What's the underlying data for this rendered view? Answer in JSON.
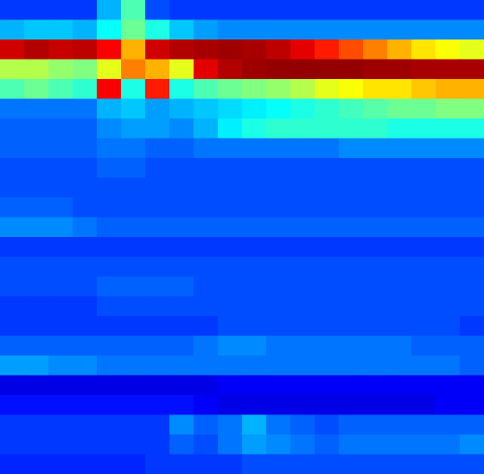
{
  "chart_data": {
    "type": "heatmap",
    "tick_labels": false,
    "grid": false,
    "color_range": [
      0,
      100
    ],
    "cells": [
      [
        18,
        18,
        18,
        18,
        30,
        45,
        20,
        18,
        18,
        18,
        18,
        18,
        18,
        18,
        18,
        18,
        18,
        18,
        18,
        18
      ],
      [
        30,
        32,
        32,
        30,
        38,
        48,
        40,
        32,
        28,
        26,
        26,
        26,
        26,
        26,
        26,
        26,
        26,
        26,
        26,
        26
      ],
      [
        92,
        95,
        93,
        94,
        88,
        70,
        92,
        95,
        96,
        97,
        96,
        94,
        90,
        85,
        80,
        75,
        70,
        65,
        62,
        60
      ],
      [
        55,
        55,
        52,
        50,
        60,
        75,
        70,
        60,
        90,
        95,
        97,
        98,
        98,
        98,
        98,
        97,
        97,
        96,
        96,
        96
      ],
      [
        45,
        48,
        45,
        42,
        88,
        40,
        85,
        40,
        45,
        48,
        50,
        52,
        55,
        60,
        62,
        65,
        65,
        68,
        70,
        70
      ],
      [
        24,
        24,
        24,
        24,
        30,
        32,
        28,
        30,
        32,
        34,
        36,
        38,
        40,
        42,
        44,
        46,
        48,
        48,
        50,
        50
      ],
      [
        22,
        22,
        22,
        22,
        26,
        28,
        28,
        26,
        30,
        36,
        40,
        42,
        42,
        42,
        42,
        42,
        40,
        40,
        40,
        40
      ],
      [
        22,
        22,
        22,
        22,
        24,
        24,
        22,
        22,
        24,
        24,
        24,
        24,
        24,
        24,
        26,
        26,
        26,
        26,
        26,
        26
      ],
      [
        20,
        20,
        20,
        20,
        22,
        22,
        20,
        20,
        20,
        20,
        20,
        20,
        20,
        20,
        20,
        20,
        20,
        20,
        20,
        20
      ],
      [
        20,
        20,
        20,
        20,
        20,
        20,
        20,
        20,
        20,
        20,
        20,
        20,
        20,
        20,
        20,
        20,
        20,
        20,
        20,
        20
      ],
      [
        22,
        22,
        22,
        20,
        20,
        20,
        20,
        20,
        20,
        20,
        20,
        20,
        20,
        20,
        20,
        20,
        20,
        20,
        20,
        20
      ],
      [
        26,
        26,
        26,
        24,
        22,
        22,
        22,
        22,
        22,
        22,
        22,
        22,
        22,
        22,
        22,
        22,
        22,
        22,
        22,
        22
      ],
      [
        18,
        18,
        18,
        18,
        18,
        18,
        18,
        18,
        18,
        18,
        18,
        18,
        18,
        18,
        18,
        18,
        18,
        18,
        18,
        18
      ],
      [
        20,
        20,
        20,
        20,
        20,
        20,
        20,
        20,
        20,
        20,
        20,
        20,
        20,
        20,
        20,
        20,
        20,
        20,
        20,
        20
      ],
      [
        20,
        20,
        20,
        20,
        22,
        22,
        22,
        22,
        20,
        20,
        20,
        20,
        20,
        20,
        20,
        20,
        20,
        20,
        20,
        20
      ],
      [
        18,
        18,
        18,
        18,
        20,
        20,
        20,
        20,
        20,
        20,
        20,
        20,
        20,
        20,
        20,
        20,
        20,
        20,
        20,
        20
      ],
      [
        18,
        18,
        18,
        18,
        18,
        18,
        18,
        18,
        18,
        20,
        20,
        20,
        20,
        20,
        20,
        20,
        20,
        20,
        20,
        18
      ],
      [
        22,
        22,
        22,
        22,
        22,
        22,
        22,
        22,
        24,
        26,
        26,
        24,
        24,
        24,
        24,
        24,
        24,
        22,
        22,
        22
      ],
      [
        28,
        28,
        26,
        26,
        24,
        24,
        24,
        24,
        24,
        24,
        24,
        24,
        24,
        24,
        24,
        24,
        24,
        24,
        24,
        22
      ],
      [
        10,
        10,
        10,
        10,
        10,
        10,
        10,
        10,
        10,
        12,
        12,
        12,
        12,
        12,
        12,
        12,
        12,
        12,
        12,
        12
      ],
      [
        14,
        14,
        14,
        14,
        14,
        14,
        14,
        14,
        12,
        10,
        10,
        10,
        10,
        10,
        10,
        10,
        10,
        10,
        12,
        12
      ],
      [
        18,
        18,
        18,
        18,
        18,
        18,
        18,
        26,
        22,
        24,
        30,
        24,
        22,
        20,
        22,
        22,
        22,
        22,
        22,
        22
      ],
      [
        18,
        18,
        18,
        18,
        18,
        18,
        18,
        22,
        20,
        24,
        28,
        26,
        24,
        22,
        24,
        24,
        24,
        24,
        24,
        26
      ],
      [
        16,
        16,
        16,
        16,
        16,
        16,
        18,
        18,
        18,
        18,
        20,
        20,
        20,
        20,
        20,
        20,
        20,
        20,
        20,
        20
      ]
    ]
  }
}
